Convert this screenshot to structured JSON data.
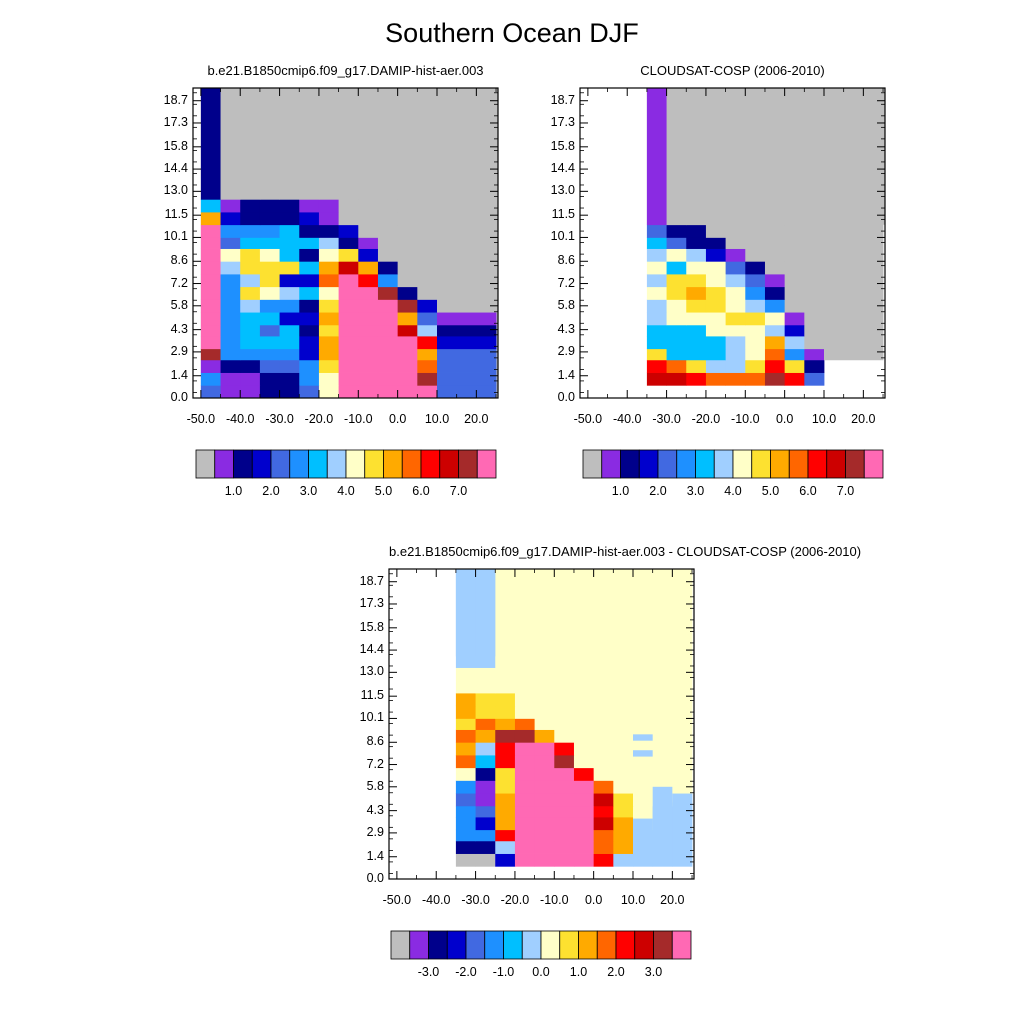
{
  "page_title": "Southern Ocean DJF",
  "palette": [
    "#bebebe",
    "#8a2be2",
    "#00008b",
    "#0000cd",
    "#4169e1",
    "#1e90ff",
    "#00bfff",
    "#a0cfff",
    "#ffffc8",
    "#fde130",
    "#ffaa00",
    "#ff6600",
    "#ff0000",
    "#cd0000",
    "#a52a2a",
    "#ff69b4"
  ],
  "chart_data": [
    {
      "type": "heatmap",
      "title": "b.e21.B1850cmip6.f09_g17.DAMIP-hist-aer.003",
      "x_ticks": [
        "-50.0",
        "-40.0",
        "-30.0",
        "-20.0",
        "-10.0",
        "0.0",
        "10.0",
        "20.0"
      ],
      "y_ticks": [
        "0.0",
        "1.4",
        "2.9",
        "4.3",
        "5.8",
        "7.2",
        "8.6",
        "10.1",
        "11.5",
        "13.0",
        "14.4",
        "15.8",
        "17.3",
        "18.7"
      ],
      "colorbar_labels": [
        "1.0",
        "2.0",
        "3.0",
        "4.0",
        "5.0",
        "6.0",
        "7.0"
      ],
      "x_edges": [
        -50,
        -45,
        -40,
        -35,
        -30,
        -25,
        -20,
        -15,
        -10,
        -5,
        0,
        5,
        10,
        25
      ],
      "y_edges": [
        0,
        0.8,
        1.6,
        2.4,
        3.1,
        3.9,
        4.6,
        5.4,
        6.2,
        7.0,
        7.8,
        8.6,
        9.4,
        10.1,
        10.9,
        11.7,
        12.5,
        19.5
      ],
      "grid_missing_value": 0,
      "grid": [
        [
          4,
          1,
          1,
          2,
          2,
          4,
          8,
          15,
          15,
          15,
          15,
          15,
          4,
          0
        ],
        [
          5,
          1,
          1,
          2,
          2,
          5,
          8,
          15,
          15,
          15,
          15,
          14,
          4,
          0
        ],
        [
          1,
          2,
          2,
          4,
          4,
          5,
          9,
          15,
          15,
          15,
          15,
          11,
          4,
          0
        ],
        [
          14,
          5,
          5,
          5,
          5,
          3,
          10,
          15,
          15,
          15,
          15,
          10,
          4,
          0
        ],
        [
          15,
          5,
          6,
          6,
          6,
          3,
          10,
          15,
          15,
          15,
          15,
          12,
          3,
          0
        ],
        [
          15,
          5,
          6,
          4,
          6,
          2,
          9,
          15,
          15,
          15,
          13,
          7,
          2,
          0
        ],
        [
          15,
          5,
          6,
          6,
          3,
          3,
          10,
          15,
          15,
          15,
          10,
          4,
          1,
          0
        ],
        [
          15,
          5,
          7,
          5,
          5,
          2,
          9,
          15,
          15,
          15,
          14,
          3,
          0,
          0
        ],
        [
          15,
          5,
          9,
          8,
          7,
          6,
          8,
          15,
          15,
          14,
          2,
          0,
          0,
          0
        ],
        [
          15,
          5,
          7,
          9,
          3,
          3,
          11,
          15,
          12,
          5,
          0,
          0,
          0,
          0
        ],
        [
          15,
          7,
          9,
          9,
          9,
          6,
          10,
          13,
          10,
          2,
          0,
          0,
          0,
          0
        ],
        [
          15,
          8,
          9,
          8,
          6,
          2,
          8,
          9,
          3,
          0,
          0,
          0,
          0,
          0
        ],
        [
          15,
          4,
          6,
          6,
          6,
          6,
          7,
          2,
          1,
          0,
          0,
          0,
          0,
          0
        ],
        [
          15,
          5,
          5,
          5,
          6,
          2,
          2,
          3,
          0,
          0,
          0,
          0,
          0,
          0
        ],
        [
          10,
          3,
          2,
          2,
          2,
          3,
          1,
          0,
          0,
          0,
          0,
          0,
          0,
          0
        ],
        [
          6,
          1,
          2,
          2,
          2,
          1,
          1,
          0,
          0,
          0,
          0,
          0,
          0,
          0
        ],
        [
          2,
          0,
          0,
          0,
          0,
          0,
          0,
          0,
          0,
          0,
          0,
          0,
          0,
          0
        ]
      ]
    },
    {
      "type": "heatmap",
      "title": "CLOUDSAT-COSP (2006-2010)",
      "x_ticks": [
        "-50.0",
        "-40.0",
        "-30.0",
        "-20.0",
        "-10.0",
        "0.0",
        "10.0",
        "20.0"
      ],
      "y_ticks": [
        "0.0",
        "1.4",
        "2.9",
        "4.3",
        "5.8",
        "7.2",
        "8.6",
        "10.1",
        "11.5",
        "13.0",
        "14.4",
        "15.8",
        "17.3",
        "18.7"
      ],
      "colorbar_labels": [
        "1.0",
        "2.0",
        "3.0",
        "4.0",
        "5.0",
        "6.0",
        "7.0"
      ],
      "x_edges": [
        -35,
        -30,
        -25,
        -20,
        -15,
        -10,
        -5,
        0,
        5,
        10,
        25
      ],
      "y_edges": [
        0.8,
        1.6,
        2.4,
        3.1,
        3.9,
        4.6,
        5.4,
        6.2,
        7.0,
        7.8,
        8.6,
        9.4,
        10.1,
        10.9,
        19.5
      ],
      "grid_missing_value": 0,
      "grid": [
        [
          13,
          13,
          12,
          11,
          11,
          11,
          14,
          12,
          4,
          -1
        ],
        [
          12,
          11,
          9,
          7,
          7,
          9,
          12,
          9,
          2,
          -1
        ],
        [
          9,
          6,
          6,
          6,
          7,
          8,
          11,
          5,
          1,
          0
        ],
        [
          6,
          6,
          6,
          6,
          7,
          8,
          10,
          7,
          0,
          0
        ],
        [
          6,
          6,
          6,
          8,
          8,
          8,
          7,
          3,
          0,
          0
        ],
        [
          7,
          8,
          8,
          8,
          9,
          9,
          8,
          1,
          0,
          0
        ],
        [
          7,
          8,
          9,
          9,
          8,
          7,
          5,
          0,
          0,
          0
        ],
        [
          8,
          9,
          10,
          9,
          8,
          5,
          2,
          0,
          0,
          0
        ],
        [
          7,
          9,
          9,
          8,
          7,
          4,
          1,
          0,
          0,
          0
        ],
        [
          8,
          6,
          8,
          8,
          4,
          2,
          0,
          0,
          0,
          0
        ],
        [
          7,
          8,
          7,
          3,
          1,
          0,
          0,
          0,
          0,
          0
        ],
        [
          6,
          4,
          2,
          2,
          0,
          0,
          0,
          0,
          0,
          0
        ],
        [
          4,
          2,
          2,
          0,
          0,
          0,
          0,
          0,
          0,
          0
        ],
        [
          1,
          0,
          0,
          0,
          0,
          0,
          0,
          0,
          0,
          0
        ]
      ]
    },
    {
      "type": "heatmap",
      "title": "b.e21.B1850cmip6.f09_g17.DAMIP-hist-aer.003 - CLOUDSAT-COSP (2006-2010)",
      "x_ticks": [
        "-50.0",
        "-40.0",
        "-30.0",
        "-20.0",
        "-10.0",
        "0.0",
        "10.0",
        "20.0"
      ],
      "y_ticks": [
        "0.0",
        "1.4",
        "2.9",
        "4.3",
        "5.8",
        "7.2",
        "8.6",
        "10.1",
        "11.5",
        "13.0",
        "14.4",
        "15.8",
        "17.3",
        "18.7"
      ],
      "colorbar_labels": [
        "-3.0",
        "-2.0",
        "-1.0",
        "0.0",
        "1.0",
        "2.0",
        "3.0"
      ],
      "x_edges": [
        -35,
        -30,
        -25,
        -20,
        -15,
        -10,
        -5,
        0,
        5,
        10,
        15,
        20,
        25
      ],
      "y_edges": [
        0.8,
        1.6,
        2.4,
        3.1,
        3.9,
        4.6,
        5.4,
        6.2,
        7.0,
        7.8,
        8.6,
        9.4,
        10.1,
        10.9,
        11.7,
        12.5,
        13.3,
        19.5
      ],
      "grid_missing_value": -1,
      "grid": [
        [
          0,
          0,
          3,
          15,
          15,
          15,
          15,
          12,
          7,
          7,
          7,
          7
        ],
        [
          2,
          2,
          7,
          15,
          15,
          15,
          15,
          11,
          10,
          7,
          7,
          7
        ],
        [
          5,
          5,
          12,
          15,
          15,
          15,
          15,
          11,
          10,
          7,
          7,
          7
        ],
        [
          5,
          3,
          10,
          15,
          15,
          15,
          15,
          13,
          10,
          8,
          7,
          7
        ],
        [
          5,
          4,
          10,
          15,
          15,
          15,
          15,
          12,
          9,
          8,
          7,
          7
        ],
        [
          4,
          1,
          10,
          15,
          15,
          15,
          15,
          13,
          9,
          8,
          8,
          7
        ],
        [
          5,
          1,
          9,
          15,
          15,
          15,
          15,
          11,
          8,
          8,
          8,
          8
        ],
        [
          8,
          2,
          9,
          15,
          15,
          15,
          12,
          8,
          8,
          8,
          8,
          8
        ],
        [
          11,
          6,
          12,
          15,
          15,
          14,
          8,
          8,
          8,
          8,
          8,
          8
        ],
        [
          10,
          7,
          12,
          15,
          15,
          12,
          8,
          8,
          8,
          8,
          8,
          8
        ],
        [
          11,
          10,
          14,
          14,
          10,
          8,
          8,
          8,
          8,
          8,
          8,
          8
        ],
        [
          9,
          11,
          10,
          11,
          8,
          8,
          8,
          8,
          8,
          8,
          8,
          8
        ],
        [
          10,
          9,
          9,
          8,
          8,
          8,
          8,
          8,
          8,
          8,
          8,
          8
        ],
        [
          10,
          9,
          9,
          8,
          8,
          8,
          8,
          8,
          8,
          8,
          8,
          8
        ],
        [
          8,
          8,
          8,
          8,
          8,
          8,
          8,
          8,
          8,
          8,
          8,
          8
        ],
        [
          8,
          8,
          8,
          8,
          8,
          8,
          8,
          8,
          8,
          8,
          8,
          8
        ],
        [
          7,
          7,
          8,
          8,
          8,
          8,
          8,
          8,
          8,
          8,
          8,
          8
        ]
      ],
      "patches": [
        {
          "x0": 10,
          "x1": 15,
          "y0": 8.7,
          "y1": 9.1,
          "color_index": 7
        },
        {
          "x0": 10,
          "x1": 15,
          "y0": 7.7,
          "y1": 8.1,
          "color_index": 7
        },
        {
          "x0": -30,
          "x1": -25,
          "y0": 14.0,
          "y1": 19.5,
          "color_index": 7
        },
        {
          "x0": -35,
          "x1": -30,
          "y0": 14.0,
          "y1": 19.5,
          "color_index": 7
        },
        {
          "x0": 15,
          "x1": 20,
          "y0": 1.0,
          "y1": 5.8,
          "color_index": 7
        },
        {
          "x0": 20,
          "x1": 25,
          "y0": 1.0,
          "y1": 4.8,
          "color_index": 7
        },
        {
          "x0": 10,
          "x1": 15,
          "y0": 1.0,
          "y1": 3.8,
          "color_index": 7
        }
      ]
    }
  ]
}
